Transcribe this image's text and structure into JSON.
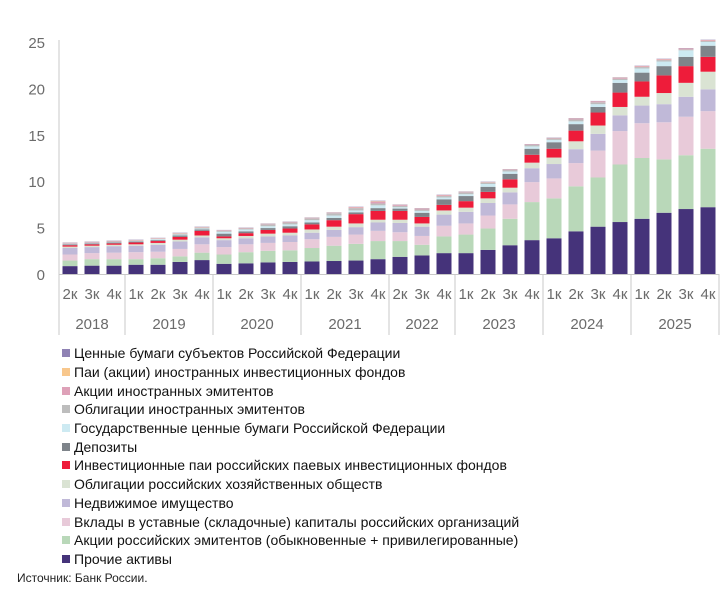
{
  "chart_data": {
    "type": "bar",
    "stacked": true,
    "title": "",
    "xlabel": "",
    "ylabel": "",
    "ylim": [
      0,
      25
    ],
    "yticks": [
      0,
      5,
      10,
      15,
      20,
      25
    ],
    "grid": false,
    "legend_position": "bottom",
    "groups": [
      {
        "year": "2018",
        "quarters": [
          "2к",
          "3к",
          "4к"
        ]
      },
      {
        "year": "2019",
        "quarters": [
          "1к",
          "2к",
          "3к",
          "4к"
        ]
      },
      {
        "year": "2020",
        "quarters": [
          "1к",
          "2к",
          "3к",
          "4к"
        ]
      },
      {
        "year": "2021",
        "quarters": [
          "1к",
          "2к",
          "3к",
          "4к"
        ]
      },
      {
        "year": "2022",
        "quarters": [
          "2к",
          "3к",
          "4к"
        ]
      },
      {
        "year": "2023",
        "quarters": [
          "1к",
          "2к",
          "3к",
          "4к"
        ]
      },
      {
        "year": "2024",
        "quarters": [
          "1к",
          "2к",
          "3к",
          "4к"
        ]
      },
      {
        "year": "2025",
        "quarters": [
          "1к",
          "2к",
          "3к",
          "4к"
        ]
      }
    ],
    "series_order_note_bottom_to_top": true,
    "series": [
      {
        "name": "Прочие активы",
        "color": "#45337a",
        "values": [
          0.85,
          0.9,
          0.9,
          1.0,
          1.0,
          1.3,
          1.5,
          1.1,
          1.15,
          1.25,
          1.3,
          1.35,
          1.4,
          1.45,
          1.6,
          1.85,
          2.0,
          2.25,
          2.25,
          2.6,
          3.1,
          3.65,
          3.85,
          4.6,
          5.1,
          5.6,
          5.95,
          6.6,
          7.0,
          7.2
        ]
      },
      {
        "name": "Акции российских эмитентов (обыкновенные + привилегированные)",
        "color": "#b9d8b9",
        "values": [
          0.6,
          0.7,
          0.7,
          0.6,
          0.7,
          0.6,
          0.8,
          1.0,
          1.2,
          1.25,
          1.25,
          1.45,
          1.65,
          1.8,
          1.95,
          1.7,
          1.15,
          1.8,
          2.0,
          2.3,
          2.85,
          4.1,
          4.3,
          4.85,
          5.3,
          6.2,
          6.55,
          5.75,
          5.8,
          6.3
        ]
      },
      {
        "name": "Вклады в уставные (складочные) капиталы российских организаций",
        "color": "#e8cad9",
        "values": [
          0.65,
          0.65,
          0.7,
          0.75,
          0.7,
          0.8,
          0.9,
          0.8,
          0.85,
          0.85,
          0.9,
          0.95,
          0.95,
          1.0,
          1.1,
          0.95,
          0.95,
          1.15,
          1.2,
          1.4,
          1.55,
          2.15,
          2.15,
          2.5,
          2.9,
          3.6,
          3.75,
          4.0,
          4.15,
          4.05
        ]
      },
      {
        "name": "Недвижимое имущество",
        "color": "#c0b9d8",
        "values": [
          0.7,
          0.65,
          0.7,
          0.7,
          0.75,
          0.8,
          0.75,
          0.75,
          0.65,
          0.7,
          0.7,
          0.7,
          0.75,
          0.8,
          0.9,
          1.0,
          1.0,
          1.2,
          1.25,
          1.35,
          1.3,
          1.5,
          1.55,
          1.5,
          1.8,
          1.7,
          1.9,
          1.95,
          2.15,
          2.35
        ]
      },
      {
        "name": "Облигации российских хозяйственных обществ",
        "color": "#dae3d3",
        "values": [
          0.15,
          0.15,
          0.15,
          0.15,
          0.2,
          0.2,
          0.2,
          0.2,
          0.25,
          0.3,
          0.3,
          0.35,
          0.35,
          0.4,
          0.3,
          0.35,
          0.35,
          0.45,
          0.45,
          0.5,
          0.5,
          0.6,
          0.7,
          0.85,
          0.9,
          0.9,
          0.95,
          1.2,
          1.5,
          1.9
        ]
      },
      {
        "name": "Инвестиционные паи российских паевых инвестиционных фондов",
        "color": "#ee1c3a",
        "values": [
          0.15,
          0.15,
          0.15,
          0.2,
          0.2,
          0.3,
          0.5,
          0.2,
          0.3,
          0.4,
          0.45,
          0.55,
          0.7,
          1.0,
          0.95,
          0.95,
          0.7,
          0.6,
          0.7,
          0.7,
          0.9,
          0.85,
          0.95,
          1.15,
          1.4,
          1.55,
          1.65,
          1.9,
          1.8,
          1.6
        ]
      },
      {
        "name": "Депозиты",
        "color": "#7e848a",
        "values": [
          0.1,
          0.1,
          0.1,
          0.1,
          0.1,
          0.15,
          0.15,
          0.3,
          0.2,
          0.2,
          0.25,
          0.2,
          0.25,
          0.2,
          0.3,
          0.25,
          0.45,
          0.6,
          0.55,
          0.55,
          0.6,
          0.65,
          0.7,
          0.7,
          0.6,
          1.05,
          0.95,
          1.0,
          1.0,
          1.2
        ]
      },
      {
        "name": "Государственные ценные бумаги Российской Федерации",
        "color": "#cdeaf2",
        "values": [
          0.05,
          0.05,
          0.05,
          0.05,
          0.1,
          0.1,
          0.1,
          0.2,
          0.2,
          0.2,
          0.2,
          0.25,
          0.25,
          0.2,
          0.3,
          0.15,
          0.2,
          0.2,
          0.2,
          0.3,
          0.25,
          0.25,
          0.25,
          0.3,
          0.3,
          0.3,
          0.45,
          0.5,
          0.7,
          0.4
        ]
      },
      {
        "name": "Облигации иностранных эмитентов",
        "color": "#bdbdbd",
        "values": [
          0.05,
          0.05,
          0.05,
          0.05,
          0.05,
          0.1,
          0.1,
          0.1,
          0.1,
          0.2,
          0.2,
          0.2,
          0.25,
          0.25,
          0.2,
          0.15,
          0.15,
          0.15,
          0.2,
          0.15,
          0.15,
          0.15,
          0.15,
          0.2,
          0.2,
          0.15,
          0.15,
          0.15,
          0.1,
          0.1
        ]
      },
      {
        "name": "Акции иностранных эмитентов",
        "color": "#dea1b8",
        "values": [
          0.05,
          0.05,
          0.05,
          0.05,
          0.05,
          0.05,
          0.05,
          0.05,
          0.05,
          0.05,
          0.05,
          0.05,
          0.05,
          0.1,
          0.2,
          0.1,
          0.1,
          0.1,
          0.05,
          0.05,
          0.05,
          0.05,
          0.05,
          0.1,
          0.1,
          0.1,
          0.1,
          0.1,
          0.1,
          0.1
        ]
      },
      {
        "name": "Паи (акции) иностранных инвестиционных фондов",
        "color": "#f8c78c",
        "values": [
          0.02,
          0.02,
          0.02,
          0.02,
          0.02,
          0.02,
          0.02,
          0.02,
          0.02,
          0.02,
          0.02,
          0.02,
          0.02,
          0.02,
          0.05,
          0.02,
          0.02,
          0.02,
          0.02,
          0.02,
          0.02,
          0.02,
          0.02,
          0.02,
          0.02,
          0.02,
          0.02,
          0.02,
          0.02,
          0.02
        ]
      },
      {
        "name": "Ценные бумаги субъектов Российской Федерации",
        "color": "#8f82b4",
        "values": [
          0.03,
          0.03,
          0.03,
          0.03,
          0.03,
          0.03,
          0.03,
          0.03,
          0.03,
          0.03,
          0.03,
          0.03,
          0.03,
          0.03,
          0.05,
          0.03,
          0.03,
          0.03,
          0.03,
          0.03,
          0.03,
          0.03,
          0.03,
          0.03,
          0.03,
          0.03,
          0.03,
          0.03,
          0.03,
          0.03
        ]
      }
    ],
    "axis_color": "#c8c8c8",
    "tick_label_color": "#6b6b6b"
  },
  "source": "Источник: Банк России."
}
